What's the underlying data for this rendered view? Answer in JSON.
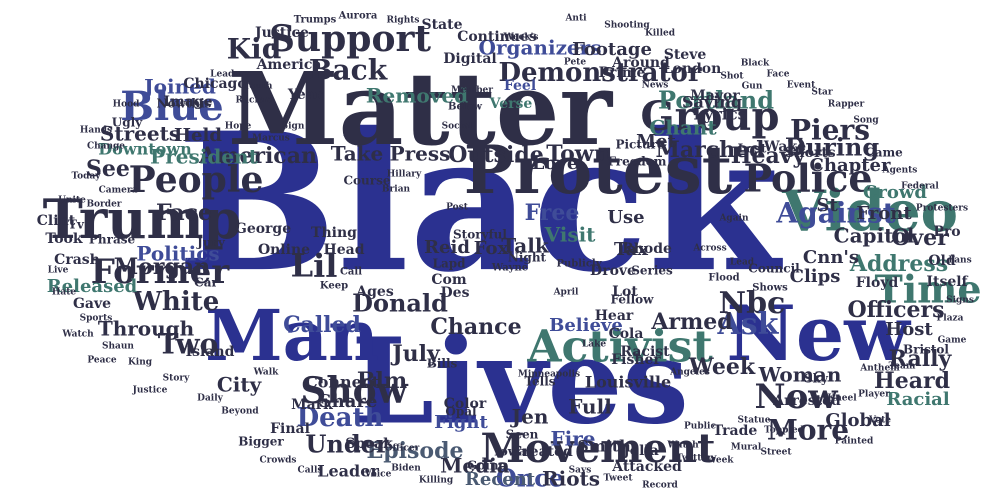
{
  "colors": {
    "background": "#ffffff",
    "dark": "#2f2f47",
    "navy": "#2b3190",
    "blue": "#3f4c98",
    "teal": "#3f776f",
    "slate": "#4a5a72"
  },
  "words": [
    {
      "text": "Black",
      "color": "navy"
    },
    {
      "text": "Matter",
      "color": "dark"
    },
    {
      "text": "Lives",
      "color": "navy"
    },
    {
      "text": "Protest",
      "color": "dark"
    },
    {
      "text": "Man",
      "color": "navy"
    },
    {
      "text": "New",
      "color": "navy"
    },
    {
      "text": "Video",
      "color": "teal"
    },
    {
      "text": "Trump",
      "color": "dark"
    },
    {
      "text": "Activist",
      "color": "teal"
    },
    {
      "text": "Movement",
      "color": "dark"
    },
    {
      "text": "Police",
      "color": "dark"
    },
    {
      "text": "Time",
      "color": "teal"
    },
    {
      "text": "Group",
      "color": "dark"
    },
    {
      "text": "Support",
      "color": "dark"
    },
    {
      "text": "People",
      "color": "dark"
    },
    {
      "text": "Former",
      "color": "dark"
    },
    {
      "text": "Show",
      "color": "dark"
    },
    {
      "text": "Now",
      "color": "dark"
    },
    {
      "text": "Blue",
      "color": "blue"
    },
    {
      "text": "Lil",
      "color": "dark"
    },
    {
      "text": "Demonstrator",
      "color": "dark"
    },
    {
      "text": "Kid",
      "color": "dark"
    },
    {
      "text": "Portland",
      "color": "teal"
    },
    {
      "text": "Against",
      "color": "blue"
    },
    {
      "text": "Death",
      "color": "blue"
    },
    {
      "text": "Back",
      "color": "dark"
    },
    {
      "text": "White",
      "color": "dark"
    },
    {
      "text": "Nbc",
      "color": "dark"
    },
    {
      "text": "Donald",
      "color": "dark"
    },
    {
      "text": "Two",
      "color": "dark"
    },
    {
      "text": "Ask",
      "color": "blue"
    },
    {
      "text": "More",
      "color": "dark"
    },
    {
      "text": "Piers",
      "color": "dark"
    },
    {
      "text": "During",
      "color": "dark"
    },
    {
      "text": "Episode",
      "color": "slate"
    },
    {
      "text": "Week",
      "color": "dark"
    },
    {
      "text": "Organizers",
      "color": "blue"
    },
    {
      "text": "American",
      "color": "dark"
    },
    {
      "text": "President",
      "color": "teal"
    },
    {
      "text": "Called",
      "color": "blue"
    },
    {
      "text": "Politics",
      "color": "blue"
    },
    {
      "text": "Morgan",
      "color": "dark"
    },
    {
      "text": "Marched",
      "color": "dark"
    },
    {
      "text": "Joined",
      "color": "blue"
    },
    {
      "text": "Town",
      "color": "dark"
    },
    {
      "text": "Blm",
      "color": "dark"
    },
    {
      "text": "July",
      "color": "dark"
    },
    {
      "text": "Officers",
      "color": "dark"
    },
    {
      "text": "Address",
      "color": "teal"
    },
    {
      "text": "Woman",
      "color": "dark"
    },
    {
      "text": "Released",
      "color": "teal"
    },
    {
      "text": "Through",
      "color": "dark"
    },
    {
      "text": "Once",
      "color": "blue"
    },
    {
      "text": "Under",
      "color": "dark"
    },
    {
      "text": "Capitol",
      "color": "dark"
    },
    {
      "text": "Rally",
      "color": "dark"
    },
    {
      "text": "Heard",
      "color": "dark"
    },
    {
      "text": "Over",
      "color": "dark"
    },
    {
      "text": "Face",
      "color": "dark"
    },
    {
      "text": "Chant",
      "color": "teal"
    },
    {
      "text": "Outside",
      "color": "dark"
    },
    {
      "text": "Heavy",
      "color": "dark"
    },
    {
      "text": "Armed",
      "color": "dark"
    },
    {
      "text": "Chance",
      "color": "dark"
    },
    {
      "text": "Removed",
      "color": "teal"
    },
    {
      "text": "City",
      "color": "dark"
    },
    {
      "text": "Fire",
      "color": "blue"
    },
    {
      "text": "Connect",
      "color": "dark"
    },
    {
      "text": "Share",
      "color": "dark"
    },
    {
      "text": "Jen",
      "color": "dark"
    },
    {
      "text": "Fight",
      "color": "blue"
    },
    {
      "text": "Reid",
      "color": "dark"
    },
    {
      "text": "Fox",
      "color": "dark"
    },
    {
      "text": "Free",
      "color": "blue"
    },
    {
      "text": "Visit",
      "color": "teal"
    },
    {
      "text": "Streets",
      "color": "dark"
    },
    {
      "text": "Held",
      "color": "dark"
    },
    {
      "text": "Downtown",
      "color": "teal"
    },
    {
      "text": "See",
      "color": "dark"
    },
    {
      "text": "Saying",
      "color": "dark"
    },
    {
      "text": "Lyrics",
      "color": "dark"
    },
    {
      "text": "Met",
      "color": "dark"
    },
    {
      "text": "Talk",
      "color": "dark"
    },
    {
      "text": "Believe",
      "color": "blue"
    },
    {
      "text": "Full",
      "color": "dark"
    },
    {
      "text": "Riots",
      "color": "dark"
    },
    {
      "text": "Media",
      "color": "dark"
    },
    {
      "text": "Recent",
      "color": "slate"
    },
    {
      "text": "Leader",
      "color": "dark"
    },
    {
      "text": "America",
      "color": "dark"
    },
    {
      "text": "Take",
      "color": "dark"
    },
    {
      "text": "Press",
      "color": "dark"
    },
    {
      "text": "Love",
      "color": "dark"
    },
    {
      "text": "Use",
      "color": "dark"
    },
    {
      "text": "Tax",
      "color": "dark"
    },
    {
      "text": "Global",
      "color": "dark"
    },
    {
      "text": "Racial",
      "color": "teal"
    },
    {
      "text": "Arrested",
      "color": "dark"
    },
    {
      "text": "Front",
      "color": "dark"
    },
    {
      "text": "Crowd",
      "color": "teal"
    },
    {
      "text": "Chapter",
      "color": "dark"
    },
    {
      "text": "St",
      "color": "dark"
    },
    {
      "text": "Cnn's",
      "color": "dark"
    },
    {
      "text": "Clips",
      "color": "dark"
    },
    {
      "text": "Host",
      "color": "dark"
    },
    {
      "text": "Footage",
      "color": "dark"
    },
    {
      "text": "State",
      "color": "dark"
    },
    {
      "text": "Continues",
      "color": "dark"
    },
    {
      "text": "Justice",
      "color": "dark"
    },
    {
      "text": "Digital",
      "color": "dark"
    },
    {
      "text": "Feel",
      "color": "blue"
    },
    {
      "text": "Verse",
      "color": "teal"
    },
    {
      "text": "Image",
      "color": "dark"
    },
    {
      "text": "Chicago",
      "color": "dark"
    },
    {
      "text": "Took",
      "color": "dark"
    },
    {
      "text": "Gave",
      "color": "dark"
    },
    {
      "text": "Island",
      "color": "dark"
    },
    {
      "text": "Final",
      "color": "dark"
    },
    {
      "text": "Mark",
      "color": "dark"
    },
    {
      "text": "Speak",
      "color": "dark"
    },
    {
      "text": "Color",
      "color": "dark"
    },
    {
      "text": "Louisville",
      "color": "dark"
    },
    {
      "text": "Smith",
      "color": "dark"
    },
    {
      "text": "Jolla",
      "color": "dark"
    },
    {
      "text": "Created",
      "color": "dark"
    },
    {
      "text": "Attacked",
      "color": "dark"
    },
    {
      "text": "Trade",
      "color": "dark"
    },
    {
      "text": "Mayor",
      "color": "dark"
    },
    {
      "text": "London",
      "color": "dark"
    },
    {
      "text": "Steve",
      "color": "dark"
    },
    {
      "text": "Wake",
      "color": "dark"
    },
    {
      "text": "Shorts",
      "color": "dark"
    },
    {
      "text": "Pro",
      "color": "dark"
    },
    {
      "text": "Old",
      "color": "dark"
    },
    {
      "text": "Ages",
      "color": "dark"
    },
    {
      "text": "Lot",
      "color": "dark"
    },
    {
      "text": "Cola",
      "color": "dark"
    },
    {
      "text": "Racist",
      "color": "dark"
    },
    {
      "text": "Fisher",
      "color": "dark"
    },
    {
      "text": "Rhode",
      "color": "dark"
    },
    {
      "text": "Drove",
      "color": "dark"
    },
    {
      "text": "Year",
      "color": "dark"
    },
    {
      "text": "Crash",
      "color": "dark"
    },
    {
      "text": "Clint",
      "color": "dark"
    },
    {
      "text": "Tv",
      "color": "dark"
    },
    {
      "text": "George",
      "color": "dark"
    },
    {
      "text": "Online",
      "color": "dark"
    },
    {
      "text": "Thing",
      "color": "dark"
    },
    {
      "text": "Head",
      "color": "dark"
    },
    {
      "text": "Floyd",
      "color": "dark"
    },
    {
      "text": "Itself",
      "color": "dark"
    },
    {
      "text": "Prime",
      "color": "dark"
    },
    {
      "text": "Around",
      "color": "dark"
    },
    {
      "text": "Com",
      "color": "dark"
    },
    {
      "text": "Lapd",
      "color": "dark"
    },
    {
      "text": "Des",
      "color": "dark"
    },
    {
      "text": "Storyful",
      "color": "dark"
    },
    {
      "text": "Night",
      "color": "dark"
    },
    {
      "text": "Series",
      "color": "dark"
    },
    {
      "text": "Phrase",
      "color": "dark"
    },
    {
      "text": "Car",
      "color": "dark"
    },
    {
      "text": "Jury",
      "color": "dark"
    },
    {
      "text": "Hear",
      "color": "dark"
    },
    {
      "text": "Bills",
      "color": "dark"
    },
    {
      "text": "Opal",
      "color": "dark"
    },
    {
      "text": "Tells",
      "color": "dark"
    },
    {
      "text": "Going",
      "color": "dark"
    },
    {
      "text": "Seen",
      "color": "dark"
    },
    {
      "text": "Iowa",
      "color": "dark"
    },
    {
      "text": "Bigger",
      "color": "dark"
    },
    {
      "text": "Nowthis",
      "color": "dark"
    },
    {
      "text": "Ugly",
      "color": "dark"
    },
    {
      "text": "Course",
      "color": "dark"
    },
    {
      "text": "Picture",
      "color": "dark"
    },
    {
      "text": "Freedom",
      "color": "dark"
    },
    {
      "text": "Council",
      "color": "dark"
    },
    {
      "text": "Lost",
      "color": "dark"
    },
    {
      "text": "Came",
      "color": "dark"
    },
    {
      "text": "Fellow",
      "color": "dark"
    },
    {
      "text": "Bristol",
      "color": "dark"
    },
    {
      "text": "Sky",
      "color": "dark"
    },
    {
      "text": "Flood",
      "color": "dark"
    },
    {
      "text": "Trumps",
      "color": "dark"
    },
    {
      "text": "Aurora",
      "color": "dark"
    },
    {
      "text": "Shows",
      "color": "dark"
    },
    {
      "text": "Keep",
      "color": "dark"
    },
    {
      "text": "Call",
      "color": "dark"
    },
    {
      "text": "Wayne",
      "color": "dark"
    },
    {
      "text": "Below",
      "color": "dark"
    },
    {
      "text": "Publicly",
      "color": "dark"
    },
    {
      "text": "Hillary",
      "color": "dark"
    },
    {
      "text": "Brian",
      "color": "dark"
    },
    {
      "text": "Post",
      "color": "dark"
    },
    {
      "text": "Week's",
      "color": "dark"
    },
    {
      "text": "Pete",
      "color": "dark"
    },
    {
      "text": "Rights",
      "color": "dark"
    },
    {
      "text": "News",
      "color": "dark"
    },
    {
      "text": "Black",
      "color": "dark"
    },
    {
      "text": "Face",
      "color": "dark"
    },
    {
      "text": "Event",
      "color": "dark"
    },
    {
      "text": "Marcus",
      "color": "dark"
    },
    {
      "text": "Sign",
      "color": "dark"
    },
    {
      "text": "Hope",
      "color": "dark"
    },
    {
      "text": "Camera",
      "color": "dark"
    },
    {
      "text": "Border",
      "color": "dark"
    },
    {
      "text": "Sports",
      "color": "dark"
    },
    {
      "text": "Shaun",
      "color": "dark"
    },
    {
      "text": "King",
      "color": "dark"
    },
    {
      "text": "Story",
      "color": "dark"
    },
    {
      "text": "Daily",
      "color": "dark"
    },
    {
      "text": "Beyond",
      "color": "dark"
    },
    {
      "text": "Again",
      "color": "dark"
    },
    {
      "text": "Across",
      "color": "dark"
    },
    {
      "text": "Lead",
      "color": "dark"
    },
    {
      "text": "Public",
      "color": "dark"
    },
    {
      "text": "Week",
      "color": "dark"
    },
    {
      "text": "April",
      "color": "dark"
    },
    {
      "text": "Lake",
      "color": "dark"
    },
    {
      "text": "Angeles",
      "color": "dark"
    },
    {
      "text": "Member",
      "color": "dark"
    },
    {
      "text": "Social",
      "color": "dark"
    },
    {
      "text": "Minneapolis",
      "color": "dark"
    },
    {
      "text": "Officer",
      "color": "dark"
    },
    {
      "text": "Killing",
      "color": "dark"
    },
    {
      "text": "Voice",
      "color": "dark"
    },
    {
      "text": "Record",
      "color": "dark"
    },
    {
      "text": "Watch",
      "color": "dark"
    },
    {
      "text": "Mural",
      "color": "dark"
    },
    {
      "text": "Street",
      "color": "dark"
    },
    {
      "text": "Painted",
      "color": "dark"
    },
    {
      "text": "Vote",
      "color": "dark"
    },
    {
      "text": "Plaza",
      "color": "dark"
    },
    {
      "text": "Signs",
      "color": "dark"
    },
    {
      "text": "Protesters",
      "color": "dark"
    },
    {
      "text": "Federal",
      "color": "dark"
    },
    {
      "text": "Agents",
      "color": "dark"
    },
    {
      "text": "Song",
      "color": "dark"
    },
    {
      "text": "Rapper",
      "color": "dark"
    },
    {
      "text": "Star",
      "color": "dark"
    },
    {
      "text": "Gun",
      "color": "dark"
    },
    {
      "text": "Shot",
      "color": "dark"
    },
    {
      "text": "Killed",
      "color": "dark"
    },
    {
      "text": "Shooting",
      "color": "dark"
    },
    {
      "text": "Anti",
      "color": "dark"
    },
    {
      "text": "Racism",
      "color": "dark"
    },
    {
      "text": "Change",
      "color": "dark"
    },
    {
      "text": "Today",
      "color": "dark"
    },
    {
      "text": "Live",
      "color": "dark"
    },
    {
      "text": "Watch",
      "color": "dark"
    },
    {
      "text": "Walk",
      "color": "dark"
    },
    {
      "text": "Crowds",
      "color": "dark"
    },
    {
      "text": "Calls",
      "color": "dark"
    },
    {
      "text": "Biden",
      "color": "dark"
    },
    {
      "text": "Says",
      "color": "dark"
    },
    {
      "text": "Tweet",
      "color": "dark"
    },
    {
      "text": "Twitter",
      "color": "dark"
    },
    {
      "text": "Statue",
      "color": "dark"
    },
    {
      "text": "Toppled",
      "color": "dark"
    },
    {
      "text": "Kneel",
      "color": "dark"
    },
    {
      "text": "Anthem",
      "color": "dark"
    },
    {
      "text": "Player",
      "color": "dark"
    },
    {
      "text": "Team",
      "color": "dark"
    },
    {
      "text": "Game",
      "color": "dark"
    },
    {
      "text": "Fans",
      "color": "dark"
    },
    {
      "text": "Leaders",
      "color": "dark"
    },
    {
      "text": "Youth",
      "color": "dark"
    },
    {
      "text": "Hood",
      "color": "dark"
    },
    {
      "text": "Hands",
      "color": "dark"
    },
    {
      "text": "Unite",
      "color": "dark"
    },
    {
      "text": "Hate",
      "color": "dark"
    },
    {
      "text": "Peace",
      "color": "dark"
    },
    {
      "text": "Justice",
      "color": "dark"
    }
  ]
}
